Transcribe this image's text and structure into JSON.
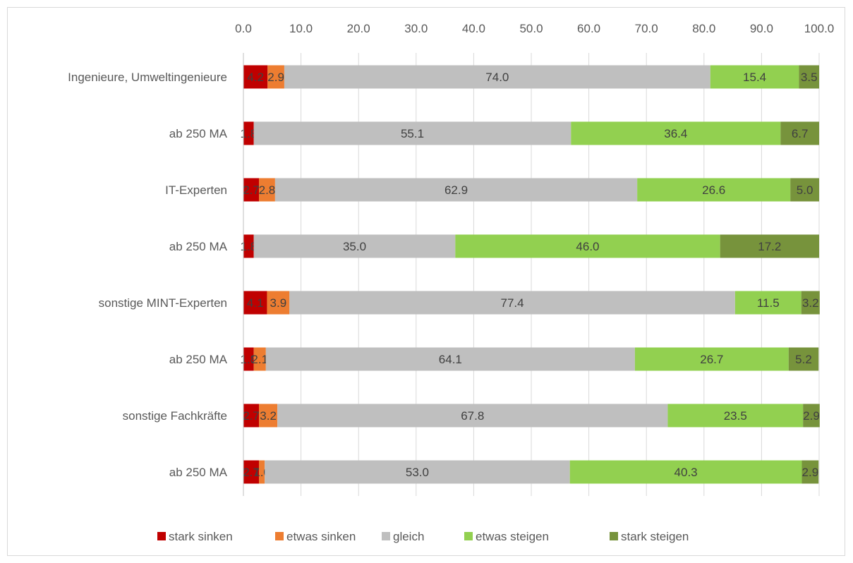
{
  "chart_data": {
    "type": "bar",
    "orientation": "horizontal",
    "stacked": true,
    "title": "",
    "xlabel": "",
    "ylabel": "",
    "xlim": [
      0,
      100
    ],
    "x_ticks": [
      "0.0",
      "10.0",
      "20.0",
      "30.0",
      "40.0",
      "50.0",
      "60.0",
      "70.0",
      "80.0",
      "90.0",
      "100.0"
    ],
    "x_axis_position": "top",
    "grid": "vertical",
    "legend_position": "bottom",
    "categories": [
      "Ingenieure, Umweltingenieure",
      "ab 250 MA",
      "IT-Experten",
      "ab 250 MA",
      "sonstige MINT-Experten",
      "ab 250 MA",
      "sonstige Fachkräfte",
      "ab 250 MA"
    ],
    "series": [
      {
        "name": "stark sinken",
        "color": "#c00000",
        "values": [
          4.2,
          1.8,
          2.7,
          1.8,
          4.1,
          1.8,
          2.7,
          2.7
        ],
        "labels": [
          "4.2",
          "1.8",
          "2.7",
          "1.8",
          "4.1",
          "1.8",
          "2.7",
          "2.7"
        ]
      },
      {
        "name": "etwas sinken",
        "color": "#ed7d31",
        "values": [
          2.9,
          0,
          2.8,
          0,
          3.9,
          2.1,
          3.2,
          1.0
        ],
        "labels": [
          "2.9",
          "",
          "2.8",
          "",
          "3.9",
          "2.1",
          "3.2",
          "1.0"
        ]
      },
      {
        "name": "gleich",
        "color": "#bfbfbf",
        "values": [
          74.0,
          55.1,
          62.9,
          35.0,
          77.4,
          64.1,
          67.8,
          53.0
        ],
        "labels": [
          "74.0",
          "55.1",
          "62.9",
          "35.0",
          "77.4",
          "64.1",
          "67.8",
          "53.0"
        ]
      },
      {
        "name": "etwas steigen",
        "color": "#92d050",
        "values": [
          15.4,
          36.4,
          26.6,
          46.0,
          11.5,
          26.7,
          23.5,
          40.3
        ],
        "labels": [
          "15.4",
          "36.4",
          "26.6",
          "46.0",
          "11.5",
          "26.7",
          "23.5",
          "40.3"
        ]
      },
      {
        "name": "stark steigen",
        "color": "#77933c",
        "values": [
          3.5,
          6.7,
          5.0,
          17.2,
          3.2,
          5.2,
          2.9,
          2.9
        ],
        "labels": [
          "3.5",
          "6.7",
          "5.0",
          "17.2",
          "3.2",
          "5.2",
          "2.9",
          "2.9"
        ]
      }
    ]
  }
}
